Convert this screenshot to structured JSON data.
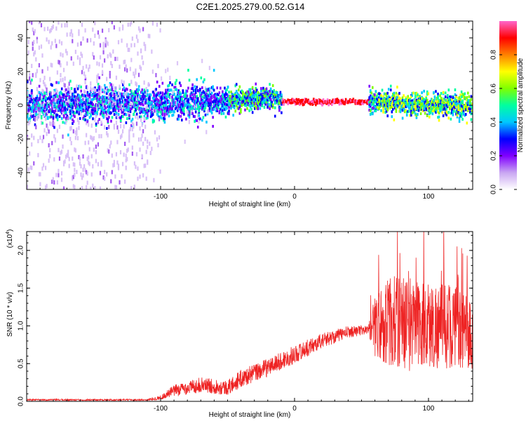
{
  "title": "C2E1.2025.279.00.52.G14",
  "chart_data": [
    {
      "type": "heatmap",
      "name": "spectrogram",
      "xlabel": "Height of straight line (km)",
      "ylabel": "Frequency (Hz)",
      "xlim": [
        -200,
        133
      ],
      "ylim": [
        -50,
        50
      ],
      "xticks": [
        -100,
        0,
        100
      ],
      "yticks": [
        -40,
        -20,
        0,
        20,
        40
      ],
      "colorbar": {
        "label": "Normalized spectral amplitude",
        "range": [
          0,
          1
        ],
        "ticks": [
          "0.0",
          "0.2",
          "0.4",
          "0.6",
          "0.8"
        ],
        "tick_values": [
          0.0,
          0.2,
          0.4,
          0.6,
          0.8
        ],
        "colors": [
          "#ffffff",
          "#c9a6f2",
          "#8000ff",
          "#0000ff",
          "#00c8ff",
          "#00ffa0",
          "#80ff00",
          "#ffff00",
          "#ff8000",
          "#ff0000",
          "#ff66cc"
        ]
      },
      "description_points": {
        "noise_region_x": [
          -200,
          -100
        ],
        "band_center_x": [
          -200,
          -60,
          -20,
          -10,
          55,
          100,
          133
        ],
        "band_center_y": [
          0,
          2,
          5,
          2,
          2,
          0,
          0
        ]
      }
    },
    {
      "type": "line",
      "name": "snr",
      "xlabel": "Height of straight line (km)",
      "ylabel": "SNR (10 * v/v)",
      "multiplier_label": "(x10",
      "multiplier_exp": "4",
      "multiplier_close": ")",
      "xlim": [
        -200,
        133
      ],
      "ylim": [
        0,
        2.25
      ],
      "xticks": [
        -100,
        0,
        100
      ],
      "yticks": [
        "0.0",
        "0.5",
        "1.0",
        "1.5",
        "2.0"
      ],
      "ytick_values": [
        0.0,
        0.5,
        1.0,
        1.5,
        2.0
      ],
      "color": "#ee2222",
      "envelope_x": [
        -200,
        -110,
        -100,
        -90,
        -70,
        -50,
        -40,
        -20,
        0,
        20,
        40,
        55,
        60,
        70,
        80,
        100,
        120,
        133
      ],
      "envelope_mean": [
        0.02,
        0.02,
        0.05,
        0.14,
        0.22,
        0.18,
        0.3,
        0.45,
        0.62,
        0.8,
        0.92,
        0.95,
        1.0,
        1.05,
        1.05,
        1.0,
        1.0,
        0.85
      ],
      "envelope_amp": [
        0.01,
        0.01,
        0.03,
        0.08,
        0.1,
        0.1,
        0.12,
        0.12,
        0.12,
        0.1,
        0.08,
        0.06,
        0.4,
        0.6,
        0.65,
        0.6,
        0.55,
        0.5
      ]
    }
  ]
}
